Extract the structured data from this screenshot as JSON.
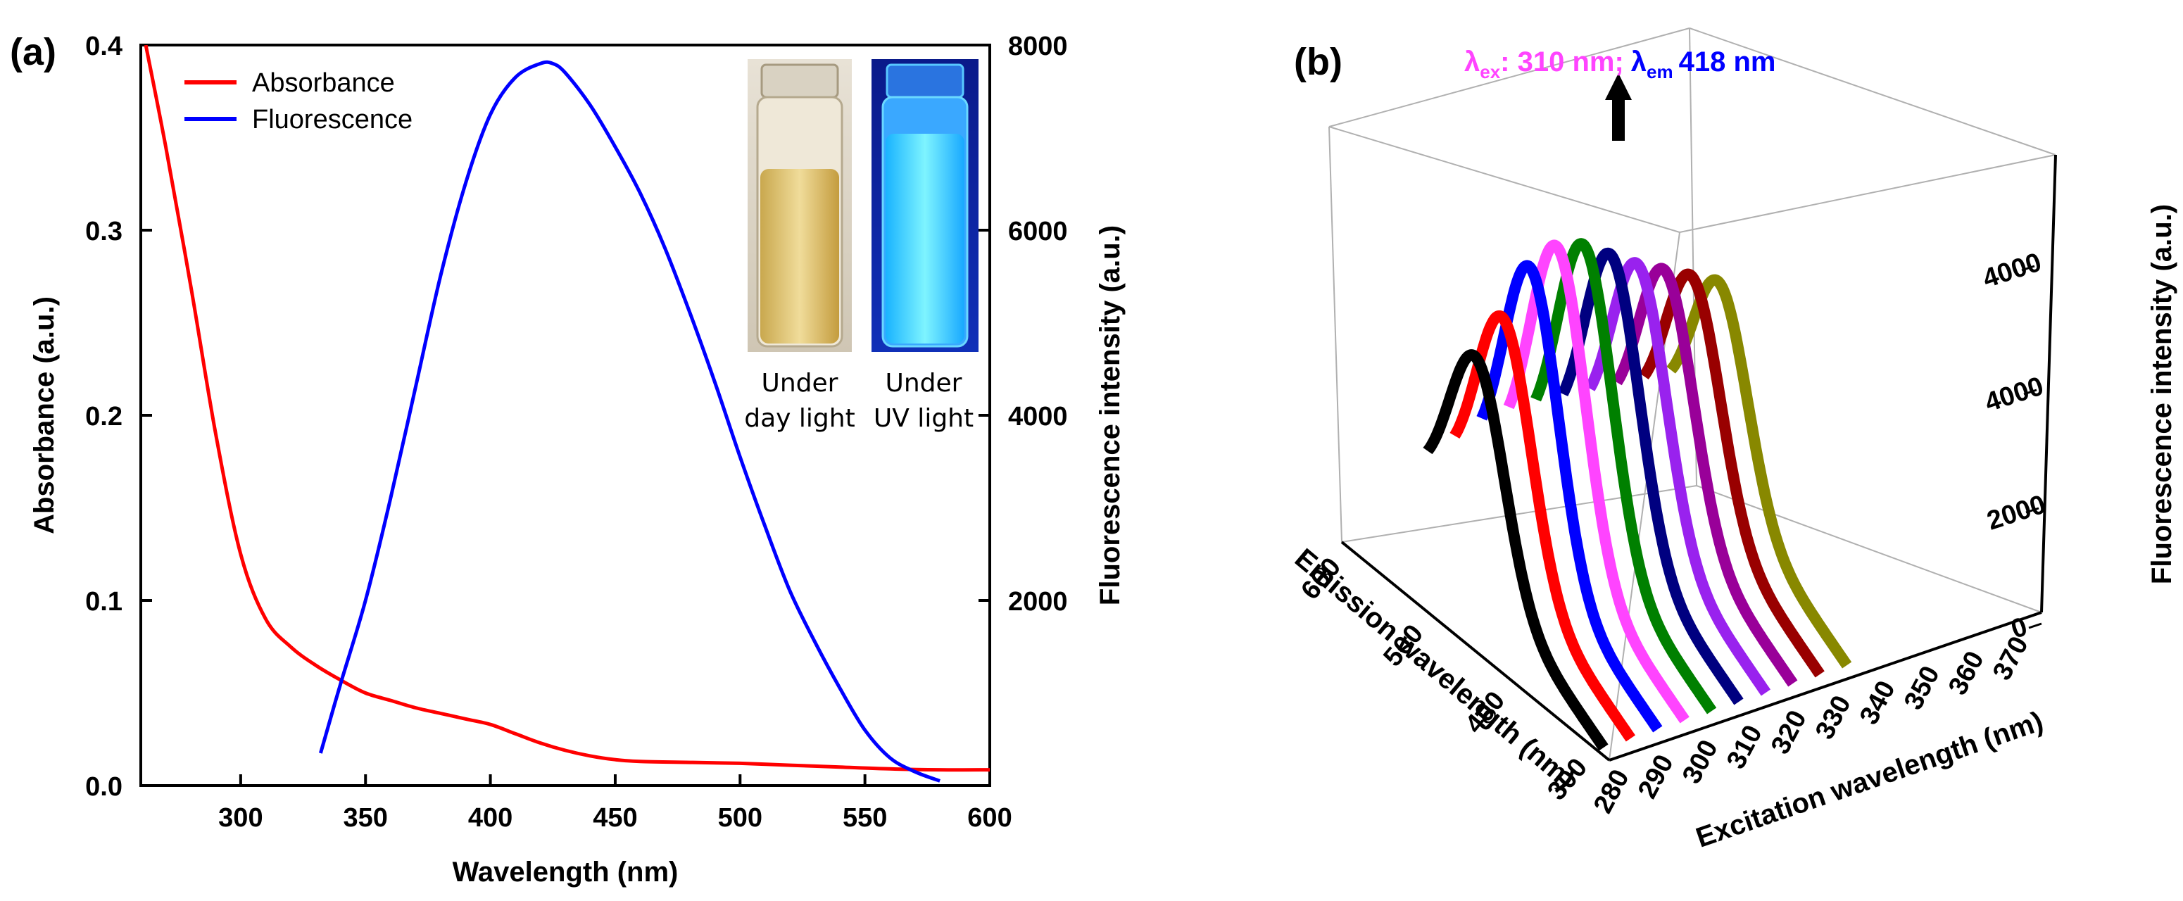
{
  "panel_a": {
    "label": "(a)",
    "legend": [
      {
        "name": "Absorbance",
        "color": "#ff0000"
      },
      {
        "name": "Fluorescence",
        "color": "#0000ff"
      }
    ],
    "inset": {
      "vial_left_caption_line1": "Under",
      "vial_left_caption_line2": "day light",
      "vial_right_caption_line1": "Under",
      "vial_right_caption_line2": "UV light"
    }
  },
  "panel_b": {
    "label": "(b)",
    "annotation": {
      "ex_symbol": "λ",
      "ex_sub": "ex",
      "ex_text": ": 310 nm;",
      "em_symbol": "λ",
      "em_sub": "em",
      "em_text": "418 nm",
      "ex_color": "#ff44ff",
      "em_color": "#0000ff"
    }
  },
  "chart_data": [
    {
      "type": "line",
      "title": "",
      "xlabel": "Wavelength (nm)",
      "ylabel": "Absorbance (a.u.)",
      "y2label": "Fluorescence intensity (a.u.)",
      "xlim": [
        260,
        600
      ],
      "ylim": [
        0,
        0.4
      ],
      "y2lim": [
        0,
        8000
      ],
      "xticks": [
        300,
        350,
        400,
        450,
        500,
        550,
        600
      ],
      "yticks": [
        0.0,
        0.1,
        0.2,
        0.3,
        0.4
      ],
      "ytick_labels": [
        "0.0",
        "0.1",
        "0.2",
        "0.3",
        "0.4"
      ],
      "y2ticks": [
        2000,
        4000,
        6000,
        8000
      ],
      "series": [
        {
          "name": "Absorbance",
          "axis": "left",
          "color": "#ff0000",
          "x": [
            262,
            270,
            280,
            290,
            300,
            310,
            320,
            330,
            340,
            350,
            360,
            370,
            380,
            390,
            400,
            410,
            420,
            430,
            440,
            450,
            460,
            480,
            500,
            520,
            540,
            560,
            580,
            600
          ],
          "y": [
            0.4,
            0.345,
            0.27,
            0.19,
            0.125,
            0.09,
            0.075,
            0.065,
            0.057,
            0.05,
            0.046,
            0.042,
            0.039,
            0.036,
            0.033,
            0.028,
            0.023,
            0.019,
            0.016,
            0.014,
            0.013,
            0.0125,
            0.012,
            0.011,
            0.01,
            0.009,
            0.0085,
            0.0085
          ]
        },
        {
          "name": "Fluorescence",
          "axis": "right",
          "color": "#0000ff",
          "x": [
            332,
            340,
            350,
            360,
            370,
            380,
            390,
            400,
            410,
            420,
            425,
            430,
            440,
            450,
            460,
            470,
            480,
            490,
            500,
            510,
            520,
            530,
            540,
            550,
            560,
            570,
            580
          ],
          "y": [
            350,
            1100,
            2000,
            3100,
            4300,
            5500,
            6500,
            7250,
            7650,
            7800,
            7800,
            7700,
            7350,
            6900,
            6400,
            5800,
            5100,
            4350,
            3550,
            2800,
            2100,
            1550,
            1050,
            600,
            300,
            150,
            50
          ]
        }
      ]
    },
    {
      "type": "line",
      "subtype": "3d-waterfall",
      "title": "",
      "xlabel": "Emission wavelength (nm)",
      "ylabel": "Excitation wavelength (nm)",
      "zlabel": "Fluorescence intensity (a.u.)",
      "emission_ticks": [
        300,
        400,
        500,
        600
      ],
      "excitation_ticks": [
        280,
        290,
        300,
        310,
        320,
        330,
        340,
        350,
        360,
        370
      ],
      "intensity_tick_labels": [
        "0",
        "2000",
        "4000",
        "4000"
      ],
      "series": [
        {
          "name": "280 nm",
          "color": "#000000",
          "peak": 2700
        },
        {
          "name": "290 nm",
          "color": "#ff0000",
          "peak": 3100
        },
        {
          "name": "300 nm",
          "color": "#0000ff",
          "peak": 3650
        },
        {
          "name": "310 nm",
          "color": "#ff44ff",
          "peak": 3800
        },
        {
          "name": "320 nm",
          "color": "#008000",
          "peak": 3700
        },
        {
          "name": "330 nm",
          "color": "#000080",
          "peak": 3450
        },
        {
          "name": "340 nm",
          "color": "#9922ee",
          "peak": 3200
        },
        {
          "name": "350 nm",
          "color": "#990099",
          "peak": 3000
        },
        {
          "name": "360 nm",
          "color": "#990000",
          "peak": 2800
        },
        {
          "name": "370 nm",
          "color": "#888800",
          "peak": 2600
        }
      ]
    }
  ]
}
